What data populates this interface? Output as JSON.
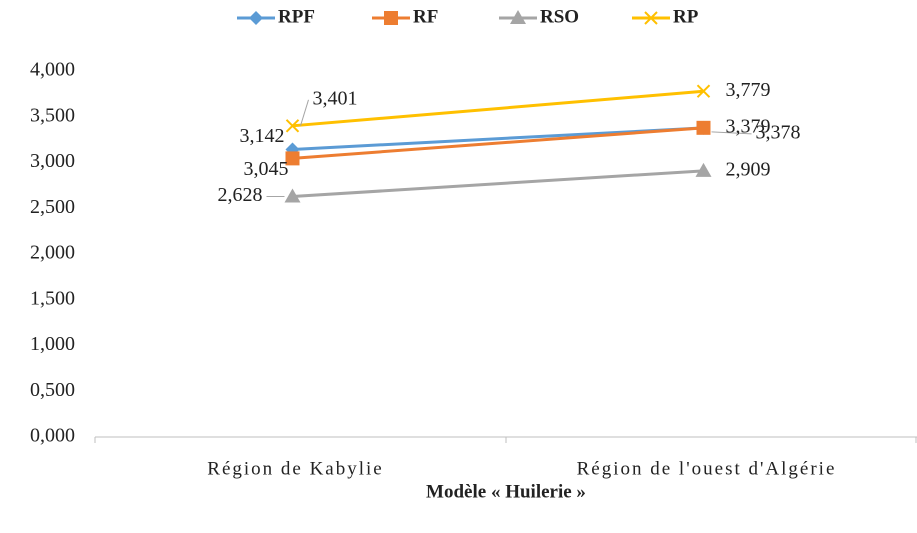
{
  "chart_data": {
    "type": "line",
    "x_label": "Modèle « Huilerie »",
    "categories": [
      "Région de Kabylie",
      "Région de l'ouest d'Algérie"
    ],
    "series": [
      {
        "name": "RPF",
        "color": "#5b9bd5",
        "marker": "diamond",
        "values": [
          3.142,
          3.378
        ],
        "value_labels": [
          "3,142",
          "3,378"
        ]
      },
      {
        "name": "RF",
        "color": "#ed7d31",
        "marker": "square",
        "values": [
          3.045,
          3.379
        ],
        "value_labels": [
          "3,045",
          "3,379"
        ]
      },
      {
        "name": "RSO",
        "color": "#a5a5a5",
        "marker": "triangle",
        "values": [
          2.628,
          2.909
        ],
        "value_labels": [
          "2,628",
          "2,909"
        ]
      },
      {
        "name": "RP",
        "color": "#ffc000",
        "marker": "x",
        "values": [
          3.401,
          3.779
        ],
        "value_labels": [
          "3,401",
          "3,779"
        ]
      }
    ],
    "ylim": [
      0,
      4
    ],
    "yticks": [
      {
        "value": 0,
        "label": "0,000"
      },
      {
        "value": 0.5,
        "label": "0,500"
      },
      {
        "value": 1,
        "label": "1,000"
      },
      {
        "value": 1.5,
        "label": "1,500"
      },
      {
        "value": 2,
        "label": "2,000"
      },
      {
        "value": 2.5,
        "label": "2,500"
      },
      {
        "value": 3,
        "label": "3,000"
      },
      {
        "value": 3.5,
        "label": "3,500"
      },
      {
        "value": 4,
        "label": "4,000"
      }
    ],
    "grid": false,
    "legend": "top"
  }
}
